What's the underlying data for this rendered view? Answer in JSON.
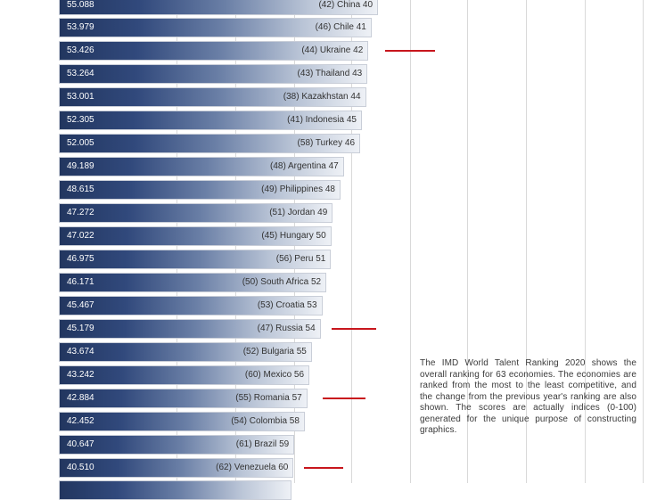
{
  "chart_data": {
    "type": "bar",
    "orientation": "horizontal",
    "title": "",
    "xlabel": "",
    "ylabel": "",
    "xlim": [
      0,
      100
    ],
    "rows": [
      {
        "score": "55.088",
        "label": "(42) China 40",
        "value": 55.088,
        "highlight": false
      },
      {
        "score": "53.979",
        "label": "(46) Chile 41",
        "value": 53.979,
        "highlight": false
      },
      {
        "score": "53.426",
        "label": "(44) Ukraine 42",
        "value": 53.426,
        "highlight": true
      },
      {
        "score": "53.264",
        "label": "(43) Thailand 43",
        "value": 53.264,
        "highlight": false
      },
      {
        "score": "53.001",
        "label": "(38) Kazakhstan 44",
        "value": 53.001,
        "highlight": false
      },
      {
        "score": "52.305",
        "label": "(41) Indonesia 45",
        "value": 52.305,
        "highlight": false
      },
      {
        "score": "52.005",
        "label": "(58) Turkey 46",
        "value": 52.005,
        "highlight": false
      },
      {
        "score": "49.189",
        "label": "(48) Argentina 47",
        "value": 49.189,
        "highlight": false
      },
      {
        "score": "48.615",
        "label": "(49) Philippines 48",
        "value": 48.615,
        "highlight": false
      },
      {
        "score": "47.272",
        "label": "(51) Jordan 49",
        "value": 47.272,
        "highlight": false
      },
      {
        "score": "47.022",
        "label": "(45) Hungary 50",
        "value": 47.022,
        "highlight": false
      },
      {
        "score": "46.975",
        "label": "(56) Peru 51",
        "value": 46.975,
        "highlight": false
      },
      {
        "score": "46.171",
        "label": "(50) South Africa 52",
        "value": 46.171,
        "highlight": false
      },
      {
        "score": "45.467",
        "label": "(53) Croatia 53",
        "value": 45.467,
        "highlight": false
      },
      {
        "score": "45.179",
        "label": "(47) Russia 54",
        "value": 45.179,
        "highlight": true
      },
      {
        "score": "43.674",
        "label": "(52) Bulgaria 55",
        "value": 43.674,
        "highlight": false
      },
      {
        "score": "43.242",
        "label": "(60) Mexico 56",
        "value": 43.242,
        "highlight": false
      },
      {
        "score": "42.884",
        "label": "(55) Romania 57",
        "value": 42.884,
        "highlight": true
      },
      {
        "score": "42.452",
        "label": "(54) Colombia 58",
        "value": 42.452,
        "highlight": false
      },
      {
        "score": "40.647",
        "label": "(61) Brazil 59",
        "value": 40.647,
        "highlight": false
      },
      {
        "score": "40.510",
        "label": "(62) Venezuela 60",
        "value": 40.51,
        "highlight": true
      }
    ],
    "annotation": "The IMD World Talent Ranking 2020 shows the overall ranking for 63 economies. The economies are ranked from the most to the least competitive, and the change from the previous year's ranking are also shown. The scores are actually indices (0-100) generated for the unique purpose of constructing graphics."
  },
  "colors": {
    "bar_dark": "#22365f",
    "bar_light": "#eef1f6",
    "marker": "#c8161d",
    "gridline": "#d9d9d9"
  }
}
